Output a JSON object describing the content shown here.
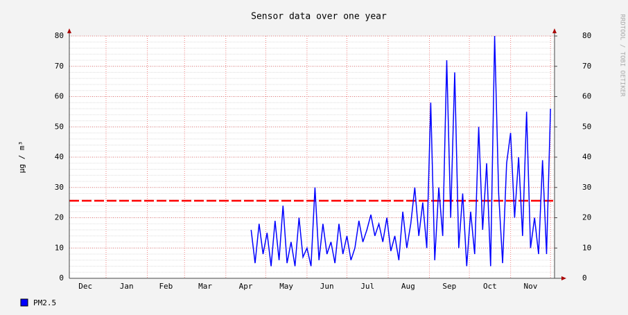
{
  "chart_data": {
    "type": "line",
    "title": "Sensor data over one year",
    "y_label": "µg / m³",
    "watermark": "RRDTOOL / TOBI OETIKER",
    "xlim": [
      3.4,
      368
    ],
    "xticks": [
      {
        "value": 15.5,
        "label": "Dec"
      },
      {
        "value": 46.5,
        "label": "Jan"
      },
      {
        "value": 76,
        "label": "Feb"
      },
      {
        "value": 105.5,
        "label": "Mar"
      },
      {
        "value": 136,
        "label": "Apr"
      },
      {
        "value": 166.5,
        "label": "May"
      },
      {
        "value": 197,
        "label": "Jun"
      },
      {
        "value": 227.5,
        "label": "Jul"
      },
      {
        "value": 258,
        "label": "Aug"
      },
      {
        "value": 289,
        "label": "Sep"
      },
      {
        "value": 319.5,
        "label": "Oct"
      },
      {
        "value": 350,
        "label": "Nov"
      }
    ],
    "xgrid": [
      31,
      62,
      90,
      121,
      151,
      182,
      212,
      243,
      274,
      304,
      335,
      365
    ],
    "ylim": [
      0,
      80
    ],
    "yticks": [
      0,
      10,
      20,
      30,
      40,
      50,
      60,
      70,
      80
    ],
    "y2lim": [
      0,
      80
    ],
    "y2ticks": [
      0,
      10,
      20,
      30,
      40,
      50,
      60,
      70,
      80
    ],
    "y_minor_step": 2,
    "grid": true,
    "x": [
      140,
      143,
      146,
      149,
      152,
      155,
      158,
      161,
      164,
      167,
      170,
      173,
      176,
      179,
      182,
      185,
      188,
      191,
      194,
      197,
      200,
      203,
      206,
      209,
      212,
      215,
      218,
      221,
      224,
      227,
      230,
      233,
      236,
      239,
      242,
      245,
      248,
      251,
      254,
      257,
      260,
      263,
      266,
      269,
      272,
      275,
      278,
      281,
      284,
      287,
      290,
      293,
      296,
      299,
      302,
      305,
      308,
      311,
      314,
      317,
      320,
      323,
      326,
      329,
      332,
      335,
      338,
      341,
      344,
      347,
      350,
      353,
      356,
      359,
      362,
      365
    ],
    "series": [
      {
        "name": "PM2.5",
        "color": "#0000ff",
        "values": [
          16,
          5,
          18,
          8,
          15,
          4,
          19,
          6,
          24,
          5,
          12,
          4,
          20,
          7,
          10,
          4,
          30,
          6,
          18,
          8,
          12,
          5,
          18,
          8,
          14,
          6,
          10,
          19,
          12,
          16,
          21,
          14,
          18,
          12,
          20,
          9,
          14,
          6,
          22,
          10,
          18,
          30,
          14,
          25,
          10,
          58,
          6,
          30,
          14,
          72,
          20,
          68,
          10,
          28,
          4,
          22,
          8,
          50,
          16,
          38,
          4,
          80,
          28,
          5,
          38,
          48,
          20,
          40,
          14,
          55,
          10,
          20,
          8,
          39,
          8,
          56
        ]
      }
    ],
    "lines": [
      {
        "value": 25.6,
        "color": "#ff0000"
      }
    ]
  }
}
